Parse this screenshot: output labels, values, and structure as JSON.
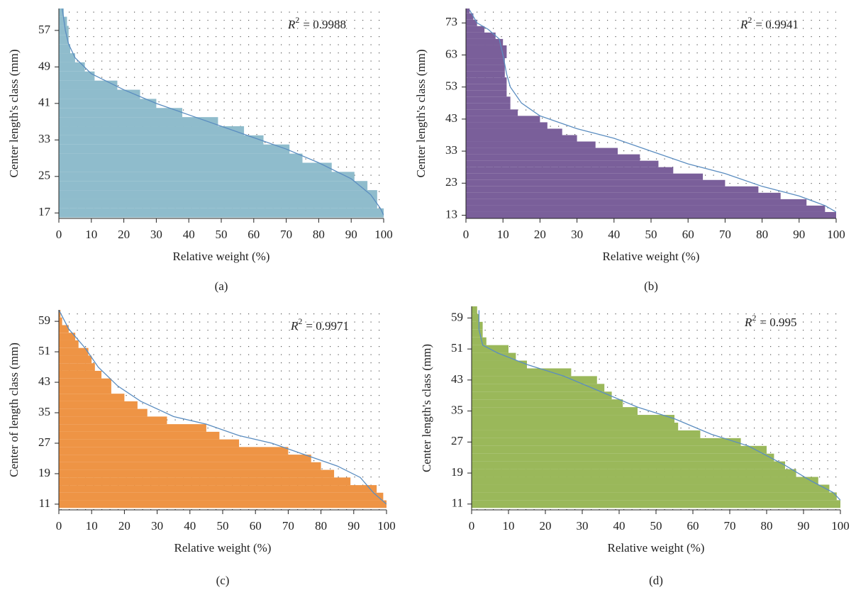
{
  "chart_data": [
    {
      "type": "bar",
      "orientation": "horizontal",
      "panel_label": "(a)",
      "xlabel": "Relative weight (%)",
      "ylabel": "Center length's class (mm)",
      "annotation": {
        "symbol": "R",
        "power": "2",
        "text": "= 0.9988"
      },
      "color": "#8fbccc",
      "fit_color": "#5b8dc0",
      "grid": true,
      "xlim": [
        0,
        100
      ],
      "xticks": [
        0,
        10,
        20,
        30,
        40,
        50,
        60,
        70,
        80,
        90,
        100
      ],
      "ylim": [
        15.8,
        61.8
      ],
      "yticks": [
        17,
        25,
        33,
        41,
        49,
        57
      ],
      "y": [
        17,
        19,
        21,
        23,
        25,
        27,
        29,
        31,
        33,
        35,
        37,
        39,
        41,
        43,
        45,
        47,
        49,
        51,
        53,
        55,
        57,
        59,
        61
      ],
      "values": [
        100,
        98,
        98,
        95,
        91,
        84,
        75,
        71,
        63,
        57,
        49,
        38,
        30,
        25,
        18,
        11,
        8,
        5,
        3.5,
        3,
        3,
        2.5,
        1.5
      ],
      "fit": {
        "x": [
          1,
          2,
          3,
          5,
          10,
          20,
          30,
          40,
          50,
          60,
          70,
          80,
          90,
          96,
          99,
          100
        ],
        "y": [
          62,
          57,
          54,
          51,
          47.5,
          44,
          41,
          38.5,
          36,
          33.5,
          31,
          28,
          24.5,
          21,
          18,
          16.5
        ]
      }
    },
    {
      "type": "bar",
      "orientation": "horizontal",
      "panel_label": "(b)",
      "xlabel": "Relative weight (%)",
      "ylabel": "Center length's class (mm)",
      "annotation": {
        "symbol": "R",
        "power": "2",
        "text": "= 0.9941"
      },
      "color": "#7a5f9a",
      "fit_color": "#5b8dc0",
      "grid": true,
      "xlim": [
        0,
        100
      ],
      "xticks": [
        0,
        10,
        20,
        30,
        40,
        50,
        60,
        70,
        80,
        90,
        100
      ],
      "ylim": [
        12,
        77.5
      ],
      "yticks": [
        13,
        23,
        33,
        43,
        53,
        63,
        73
      ],
      "y": [
        13,
        15,
        17,
        19,
        21,
        23,
        25,
        27,
        29,
        31,
        33,
        35,
        37,
        39,
        41,
        43,
        45,
        47,
        49,
        51,
        53,
        55,
        57,
        59,
        61,
        63,
        65,
        67,
        69,
        71,
        73,
        75,
        77
      ],
      "values": [
        100,
        97,
        92,
        85,
        79,
        70,
        64,
        56,
        52,
        47,
        41,
        35,
        30,
        26,
        22,
        20,
        14,
        12,
        12,
        11,
        11,
        11,
        10.5,
        10.5,
        10.5,
        11,
        11,
        10,
        8,
        5,
        3,
        2,
        1
      ],
      "fit": {
        "x": [
          1,
          3,
          6,
          9,
          10,
          11,
          12,
          15,
          20,
          30,
          40,
          50,
          60,
          70,
          80,
          90,
          97,
          100
        ],
        "y": [
          77,
          73,
          71,
          68,
          63,
          57,
          53,
          48,
          44,
          40,
          37,
          33,
          29,
          26,
          22,
          19,
          16,
          14
        ]
      }
    },
    {
      "type": "bar",
      "orientation": "horizontal",
      "panel_label": "(c)",
      "xlabel": "Relative weight (%)",
      "ylabel": "Center of length class (mm)",
      "annotation": {
        "symbol": "R",
        "power": "2",
        "text": "= 0.9971"
      },
      "color": "#ee9445",
      "fit_color": "#5b8dc0",
      "grid": true,
      "xlim": [
        0,
        100
      ],
      "xticks": [
        0,
        10,
        20,
        30,
        40,
        50,
        60,
        70,
        80,
        90,
        100
      ],
      "ylim": [
        9.5,
        62
      ],
      "yticks": [
        11,
        19,
        27,
        35,
        43,
        51,
        59
      ],
      "y": [
        11,
        13,
        15,
        17,
        19,
        21,
        23,
        25,
        27,
        29,
        31,
        33,
        35,
        37,
        39,
        41,
        43,
        45,
        47,
        49,
        51,
        53,
        55,
        57,
        59,
        61
      ],
      "values": [
        100,
        99,
        97,
        89,
        84,
        80,
        77,
        70,
        55,
        49,
        45,
        33,
        27,
        24,
        20,
        16,
        16,
        13,
        11,
        10,
        9,
        6,
        5,
        3,
        1,
        0.5
      ],
      "fit": {
        "x": [
          0,
          3,
          8,
          12,
          18,
          25,
          35,
          45,
          55,
          65,
          75,
          85,
          92,
          96,
          100
        ],
        "y": [
          62,
          57,
          52,
          47,
          42,
          38,
          34,
          32,
          29,
          27,
          24,
          21,
          18,
          14,
          11
        ]
      }
    },
    {
      "type": "bar",
      "orientation": "horizontal",
      "panel_label": "(d)",
      "xlabel": "Relative weight (%)",
      "ylabel": "Center length's class (mm)",
      "annotation": {
        "symbol": "R",
        "power": "2",
        "text": "= 0.995"
      },
      "color": "#9ab85a",
      "fit_color": "#5b8dc0",
      "grid": true,
      "xlim": [
        0,
        100
      ],
      "xticks": [
        0,
        10,
        20,
        30,
        40,
        50,
        60,
        70,
        80,
        90,
        100
      ],
      "ylim": [
        9.5,
        62
      ],
      "yticks": [
        11,
        19,
        27,
        35,
        43,
        51,
        59
      ],
      "y": [
        11,
        13,
        15,
        17,
        19,
        21,
        23,
        25,
        27,
        29,
        31,
        33,
        35,
        37,
        39,
        41,
        43,
        45,
        47,
        49,
        51,
        53,
        55,
        57,
        59,
        61
      ],
      "values": [
        100,
        99,
        97,
        94,
        88,
        85,
        82,
        80,
        73,
        62,
        56,
        55,
        45,
        41,
        38,
        36,
        34,
        27,
        15,
        12,
        10,
        4,
        3,
        3,
        2,
        1.5
      ],
      "fit": {
        "x": [
          2,
          2,
          3,
          7,
          15,
          25,
          35,
          45,
          55,
          65,
          75,
          85,
          92,
          98,
          100
        ],
        "y": [
          61,
          56,
          52,
          50,
          47,
          44,
          40,
          36,
          33,
          29,
          26,
          21,
          17,
          14,
          12
        ]
      }
    }
  ]
}
